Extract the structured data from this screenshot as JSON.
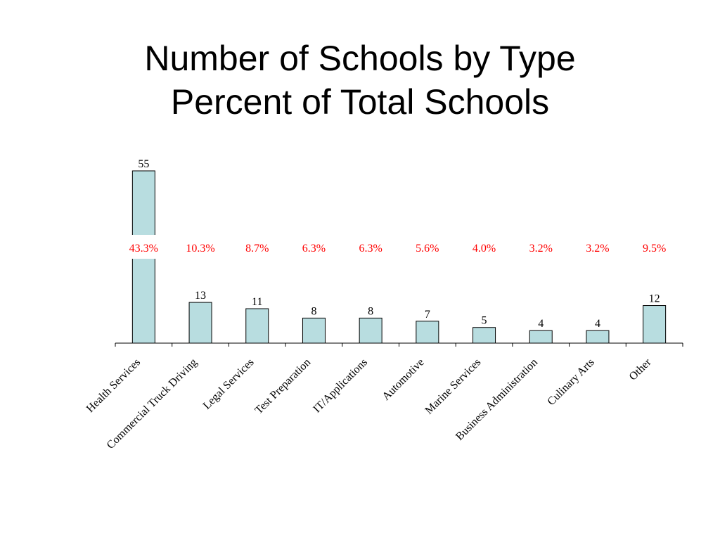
{
  "slide": {
    "title_line1": "Number of Schools by Type",
    "title_line2": "Percent of Total Schools"
  },
  "chart_data": {
    "type": "bar",
    "categories": [
      "Health Services",
      "Commercial Truck Driving",
      "Legal Services",
      "Test Preparation",
      "IT/Applications",
      "Automotive",
      "Marine Services",
      "Business Administration",
      "Culinary Arts",
      "Other"
    ],
    "values": [
      55,
      13,
      11,
      8,
      8,
      7,
      5,
      4,
      4,
      12
    ],
    "percent_labels": [
      "43.3%",
      "10.3%",
      "8.7%",
      "6.3%",
      "6.3%",
      "5.6%",
      "4.0%",
      "3.2%",
      "3.2%",
      "9.5%"
    ],
    "title": "Number of Schools by Type",
    "subtitle": "Percent of Total Schools",
    "xlabel": "",
    "ylabel": "",
    "ylim": [
      0,
      55
    ],
    "grid": false,
    "legend": "none",
    "colors": {
      "bar_fill": "#b8dde0",
      "bar_stroke": "#000000",
      "percent_text": "#ff0000"
    }
  }
}
